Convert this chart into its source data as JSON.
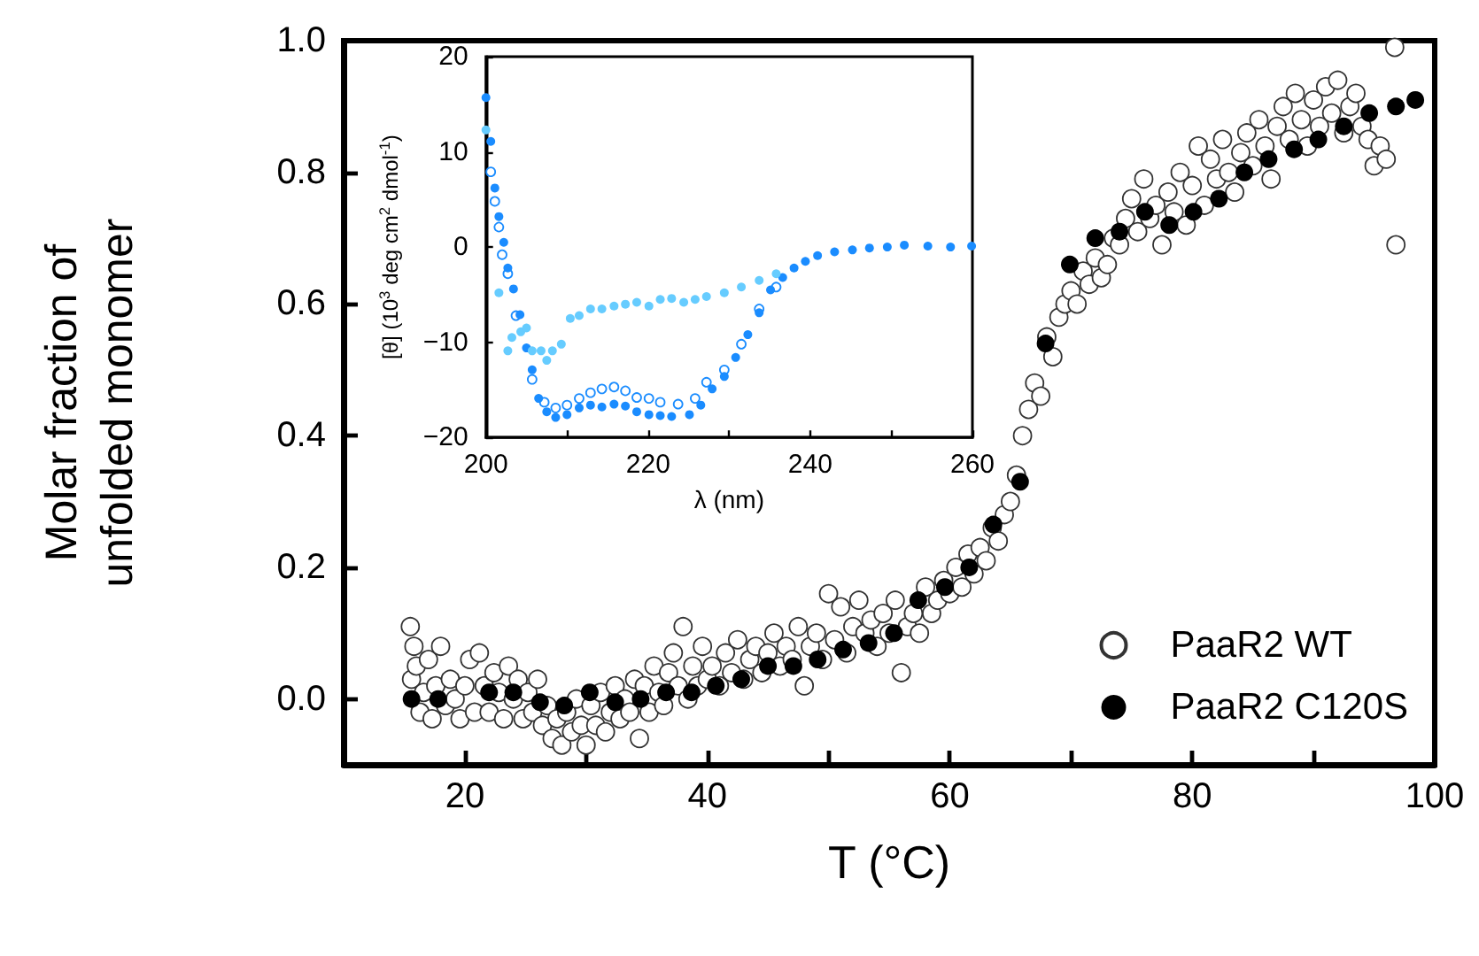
{
  "chart_data": [
    {
      "type": "scatter",
      "xlabel": "T (°C)",
      "ylabel": "Molar fraction of\nunfolded monomer",
      "marker": "circle",
      "legend": "bottom right",
      "grid": false,
      "xlim": [
        10,
        100
      ],
      "xticks": [
        20,
        {
          "value": 30,
          "label": null
        },
        40,
        {
          "value": 50,
          "label": null
        },
        60,
        {
          "value": 70,
          "label": null
        },
        80,
        {
          "value": 90,
          "label": null
        },
        100
      ],
      "ylim": [
        -0.1,
        1.0
      ],
      "yticks": [
        {
          "value": 0,
          "label": "0.0"
        },
        0.2,
        0.4,
        0.6,
        0.8,
        {
          "value": 1,
          "label": "1.0"
        }
      ],
      "series": [
        {
          "name": "PaaR2 WT",
          "color": "#ffffff",
          "x": [
            15.5,
            15.6,
            15.8,
            16,
            16.3,
            16.6,
            17,
            17.3,
            17.6,
            18,
            18.4,
            18.8,
            19.2,
            19.6,
            20,
            20.4,
            20.8,
            21.2,
            21.6,
            22,
            22.4,
            22.8,
            23.2,
            23.6,
            24,
            24.4,
            24.8,
            25.2,
            25.6,
            26,
            26.4,
            26.8,
            27.2,
            27.6,
            28,
            28.4,
            28.8,
            29.2,
            29.6,
            30,
            30.4,
            30.8,
            31.2,
            31.6,
            32,
            32.4,
            32.8,
            33.2,
            33.6,
            34,
            34.4,
            34.8,
            35.2,
            35.6,
            36,
            36.4,
            36.8,
            37.2,
            37.6,
            38,
            38.4,
            38.8,
            39.2,
            39.6,
            40,
            40.4,
            41,
            41.5,
            42,
            42.5,
            43,
            43.5,
            44,
            44.5,
            45,
            45.5,
            46,
            46.5,
            47,
            47.5,
            48,
            48.5,
            49,
            49.5,
            50,
            50.5,
            51,
            51.5,
            52,
            52.5,
            53,
            53.5,
            54,
            54.5,
            55,
            55.5,
            56,
            56.5,
            57,
            57.5,
            58,
            58.5,
            59,
            59.5,
            60,
            60.5,
            61,
            61.5,
            62,
            62.5,
            63,
            63.5,
            64,
            64.5,
            65,
            65.5,
            66,
            66.5,
            67,
            67.5,
            68,
            68.5,
            69,
            69.5,
            70,
            70.5,
            71,
            71.5,
            72,
            72.5,
            73,
            73.5,
            74,
            74.5,
            75,
            75.5,
            76,
            76.5,
            77,
            77.5,
            78,
            78.5,
            79,
            79.5,
            80,
            80.5,
            81,
            81.5,
            82,
            82.5,
            83,
            83.5,
            84,
            84.5,
            85,
            85.5,
            86,
            86.5,
            87,
            87.5,
            88,
            88.5,
            89,
            89.5,
            90,
            90.5,
            91,
            91.5,
            92,
            92.5,
            93,
            93.5,
            94,
            94.5,
            95,
            95.5,
            96,
            96.7,
            96.8
          ],
          "values": [
            0.11,
            0.03,
            0.08,
            0.05,
            -0.02,
            0.01,
            0.06,
            -0.03,
            0.02,
            0.08,
            -0.01,
            0.03,
            0.0,
            -0.03,
            0.02,
            0.06,
            -0.02,
            0.07,
            0.02,
            -0.02,
            0.04,
            0.01,
            -0.03,
            0.05,
            0.0,
            0.03,
            -0.03,
            0.01,
            -0.02,
            0.03,
            -0.04,
            -0.01,
            -0.06,
            -0.03,
            -0.07,
            -0.02,
            -0.05,
            0.0,
            -0.04,
            -0.07,
            -0.01,
            -0.04,
            0.01,
            -0.05,
            -0.02,
            0.02,
            -0.03,
            0.0,
            -0.02,
            0.03,
            -0.06,
            0.02,
            -0.02,
            0.05,
            0.01,
            -0.01,
            0.04,
            0.07,
            0.02,
            0.11,
            0.0,
            0.05,
            0.02,
            0.08,
            0.03,
            0.05,
            0.02,
            0.07,
            0.04,
            0.09,
            0.03,
            0.06,
            0.08,
            0.04,
            0.07,
            0.1,
            0.05,
            0.08,
            0.06,
            0.11,
            0.02,
            0.08,
            0.1,
            0.06,
            0.16,
            0.09,
            0.14,
            0.07,
            0.11,
            0.15,
            0.1,
            0.12,
            0.08,
            0.13,
            0.1,
            0.15,
            0.04,
            0.11,
            0.13,
            0.1,
            0.17,
            0.13,
            0.15,
            0.18,
            0.16,
            0.2,
            0.17,
            0.22,
            0.19,
            0.23,
            0.21,
            0.26,
            0.24,
            0.28,
            0.3,
            0.34,
            0.4,
            0.44,
            0.48,
            0.46,
            0.55,
            0.52,
            0.58,
            0.6,
            0.62,
            0.6,
            0.65,
            0.63,
            0.67,
            0.64,
            0.66,
            0.7,
            0.69,
            0.73,
            0.76,
            0.71,
            0.79,
            0.73,
            0.75,
            0.69,
            0.77,
            0.74,
            0.8,
            0.72,
            0.78,
            0.84,
            0.75,
            0.82,
            0.79,
            0.85,
            0.8,
            0.77,
            0.83,
            0.86,
            0.81,
            0.88,
            0.84,
            0.79,
            0.87,
            0.9,
            0.85,
            0.92,
            0.88,
            0.84,
            0.91,
            0.87,
            0.93,
            0.89,
            0.94,
            0.86,
            0.9,
            0.92,
            0.87,
            0.85,
            0.81,
            0.84,
            0.82,
            0.99,
            0.69
          ]
        },
        {
          "name": "PaaR2 C120S",
          "color": "#000000",
          "x": [
            15.6,
            17.8,
            22.0,
            24.0,
            26.2,
            28.2,
            30.3,
            32.4,
            34.5,
            36.6,
            38.7,
            40.7,
            42.8,
            45.0,
            47.1,
            49.1,
            51.2,
            53.3,
            55.4,
            57.4,
            59.6,
            61.6,
            63.6,
            65.8,
            67.9,
            69.9,
            72.0,
            74.0,
            76.1,
            78.1,
            80.1,
            82.2,
            84.3,
            86.3,
            88.4,
            90.4,
            92.5,
            94.6,
            96.8,
            98.4
          ],
          "values": [
            0.0,
            0.0,
            0.01,
            0.01,
            -0.005,
            -0.01,
            0.01,
            -0.005,
            0.0,
            0.01,
            0.01,
            0.02,
            0.03,
            0.05,
            0.05,
            0.06,
            0.075,
            0.085,
            0.1,
            0.15,
            0.17,
            0.2,
            0.265,
            0.33,
            0.54,
            0.66,
            0.7,
            0.71,
            0.74,
            0.72,
            0.74,
            0.76,
            0.8,
            0.82,
            0.835,
            0.85,
            0.87,
            0.89,
            0.9,
            0.91
          ]
        }
      ]
    },
    {
      "type": "scatter",
      "xlabel": "λ (nm)",
      "ylabel": "[θ] (10$^{3}$ deg cm$^{2}$ dmol$^{-1}$)",
      "marker": "circle",
      "grid": false,
      "xlim": [
        200,
        260
      ],
      "xticks": [
        200,
        {
          "value": 210,
          "label": null
        },
        220,
        {
          "value": 230,
          "label": null
        },
        240,
        {
          "value": 250,
          "label": null
        },
        260
      ],
      "ylim": [
        -20,
        20
      ],
      "yticks": [
        -20,
        -10,
        0,
        10,
        20
      ],
      "series": [
        {
          "color": "#1a8cff",
          "x": [
            200,
            200.6,
            201.1,
            201.6,
            202.2,
            202.7,
            203.4,
            204.2,
            205,
            205.7,
            206.5,
            207.5,
            208.6,
            210,
            211.5,
            212.9,
            214.3,
            215.8,
            217.2,
            218.6,
            220.1,
            221.5,
            222.9,
            225.1,
            226.5,
            227.9,
            229.4,
            230.8,
            232.3,
            233.7,
            235.1,
            236.6,
            238,
            239.4,
            240.9,
            243,
            245.2,
            247.3,
            249.5,
            251.6,
            254.5,
            257.3,
            259.9
          ],
          "values": [
            15.7,
            11.1,
            6.2,
            3.2,
            0.5,
            -2.2,
            -4.4,
            -7.1,
            -10.6,
            -12.9,
            -15.9,
            -17.3,
            -17.9,
            -17.6,
            -16.9,
            -16.6,
            -16.8,
            -16.5,
            -16.7,
            -17.3,
            -17.6,
            -17.7,
            -17.8,
            -17.6,
            -16.6,
            -14.9,
            -13.6,
            -11.6,
            -9.2,
            -6.9,
            -4.5,
            -3.2,
            -2.2,
            -1.5,
            -0.9,
            -0.5,
            -0.3,
            -0.1,
            0,
            0.2,
            0.1,
            0,
            0.1
          ]
        },
        {
          "color": "#ffffff",
          "x": [
            200.6,
            201.1,
            201.6,
            202,
            202.7,
            203.7,
            205.7,
            207.2,
            208.6,
            210,
            211.5,
            212.9,
            214.3,
            215.8,
            217.2,
            218.6,
            220.1,
            221.5,
            223.7,
            225.8,
            227.2,
            229.4,
            231.5,
            233.7,
            235.8
          ],
          "values": [
            7.9,
            4.8,
            2.1,
            -0.8,
            -2.8,
            -7.2,
            -13.9,
            -16.3,
            -16.9,
            -16.6,
            -15.9,
            -15.3,
            -14.9,
            -14.7,
            -15.1,
            -15.8,
            -15.9,
            -16.3,
            -16.5,
            -15.9,
            -14.2,
            -12.9,
            -10.2,
            -6.5,
            -4.2
          ]
        },
        {
          "color": "#66ccff",
          "x": [
            200,
            201.6,
            202.7,
            203.2,
            204.3,
            205,
            205.7,
            206.8,
            207.5,
            208.2,
            209.3,
            210.4,
            211.5,
            212.9,
            214.3,
            215.8,
            217.2,
            218.6,
            220.1,
            221.5,
            222.9,
            224.4,
            225.8,
            227.2,
            229.4,
            231.5,
            233.7,
            235.8
          ],
          "values": [
            12.3,
            -4.8,
            -10.9,
            -9.5,
            -8.9,
            -8.5,
            -10.9,
            -10.9,
            -11.9,
            -10.9,
            -10.2,
            -7.5,
            -7.2,
            -6.5,
            -6.5,
            -6.2,
            -6.0,
            -5.8,
            -6.2,
            -5.5,
            -5.4,
            -5.8,
            -5.5,
            -5.2,
            -4.8,
            -4.2,
            -3.5,
            -2.8
          ]
        }
      ]
    }
  ]
}
